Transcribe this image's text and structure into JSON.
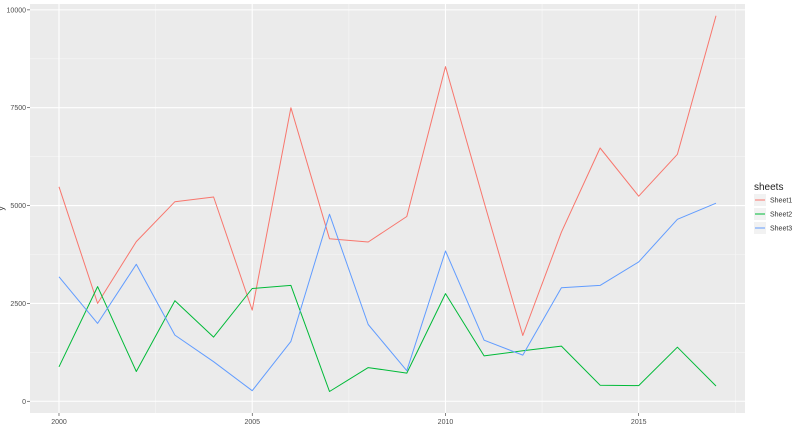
{
  "chart_data": {
    "type": "line",
    "title": "",
    "xlabel": "",
    "ylabel": "y",
    "xlim": [
      1999.25,
      2017.75
    ],
    "ylim": [
      -300,
      10150
    ],
    "xticks": [
      2000,
      2005,
      2010,
      2015
    ],
    "yticks": [
      0,
      2500,
      5000,
      7500,
      10000
    ],
    "grid": true,
    "legend": {
      "title": "sheets",
      "position": "right"
    },
    "x": [
      2000,
      2001,
      2002,
      2003,
      2004,
      2005,
      2006,
      2007,
      2008,
      2009,
      2010,
      2011,
      2012,
      2013,
      2014,
      2015,
      2016,
      2017
    ],
    "series": [
      {
        "name": "Sheet1",
        "color": "#F8766D",
        "values": [
          5480,
          2500,
          4080,
          5100,
          5220,
          2330,
          7500,
          4150,
          4070,
          4720,
          8550,
          5080,
          1680,
          4320,
          6470,
          5240,
          6310,
          9850
        ]
      },
      {
        "name": "Sheet2",
        "color": "#00BA38",
        "values": [
          880,
          2930,
          760,
          2570,
          1640,
          2880,
          2960,
          250,
          860,
          720,
          2750,
          1160,
          1290,
          1410,
          410,
          400,
          1380,
          390
        ]
      },
      {
        "name": "Sheet3",
        "color": "#619CFF",
        "values": [
          3180,
          1990,
          3500,
          1690,
          1010,
          270,
          1530,
          4780,
          1960,
          780,
          3840,
          1560,
          1180,
          2900,
          2960,
          3560,
          4650,
          5060
        ]
      }
    ]
  }
}
